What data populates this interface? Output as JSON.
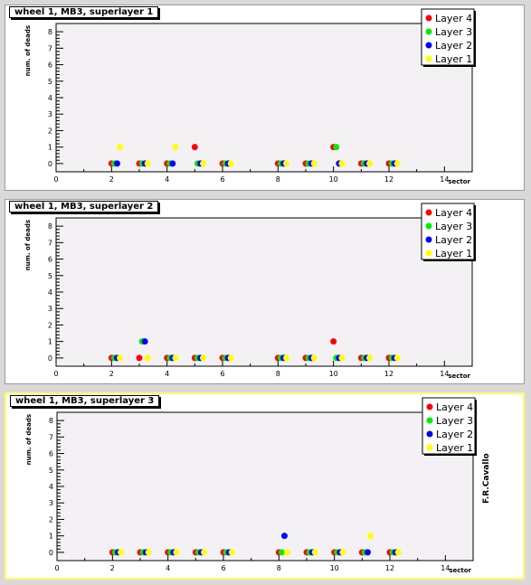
{
  "signature": "F.R.Cavallo",
  "colors": {
    "canvas": "#d9d9d9",
    "frame_fill": "#f4f1f4",
    "Layer 4": "#ff0000",
    "Layer 3": "#00ee00",
    "Layer 2": "#0000ff",
    "Layer 1": "#ffff00"
  },
  "chart_data": [
    {
      "type": "scatter",
      "title": "wheel 1, MB3, superlayer 1",
      "xlabel": "sector",
      "ylabel": "num. of deads",
      "xlim": [
        0,
        15
      ],
      "ylim": [
        -0.5,
        8.5
      ],
      "xticks": [
        "0",
        "2",
        "4",
        "6",
        "8",
        "10",
        "12",
        "14"
      ],
      "yticks": [
        "0",
        "1",
        "2",
        "3",
        "4",
        "5",
        "6",
        "7",
        "8"
      ],
      "legend": [
        "Layer 4",
        "Layer 3",
        "Layer 2",
        "Layer 1"
      ],
      "series": [
        {
          "name": "Layer 4",
          "x": [
            2,
            3,
            4,
            5,
            6,
            8,
            9,
            10,
            11,
            12
          ],
          "y": [
            0,
            0,
            0,
            1,
            0,
            0,
            0,
            1,
            0,
            0
          ]
        },
        {
          "name": "Layer 3",
          "x": [
            2.1,
            3.1,
            4.1,
            5.1,
            6.1,
            8.1,
            9.1,
            10.1,
            11.1,
            12.1
          ],
          "y": [
            0,
            0,
            0,
            0,
            0,
            0,
            0,
            1,
            0,
            0
          ]
        },
        {
          "name": "Layer 2",
          "x": [
            2.2,
            3.2,
            4.2,
            5.2,
            6.2,
            8.2,
            9.2,
            10.2,
            11.2,
            12.2
          ],
          "y": [
            0,
            0,
            0,
            0,
            0,
            0,
            0,
            0,
            0,
            0
          ]
        },
        {
          "name": "Layer 1",
          "x": [
            2.3,
            3.3,
            4.3,
            5.3,
            6.3,
            8.3,
            9.3,
            10.3,
            11.3,
            12.3
          ],
          "y": [
            1,
            0,
            1,
            0,
            0,
            0,
            0,
            0,
            0,
            0
          ]
        }
      ]
    },
    {
      "type": "scatter",
      "title": "wheel 1, MB3, superlayer 2",
      "xlabel": "sector",
      "ylabel": "num. of deads",
      "xlim": [
        0,
        15
      ],
      "ylim": [
        -0.5,
        8.5
      ],
      "xticks": [
        "0",
        "2",
        "4",
        "6",
        "8",
        "10",
        "12",
        "14"
      ],
      "yticks": [
        "0",
        "1",
        "2",
        "3",
        "4",
        "5",
        "6",
        "7",
        "8"
      ],
      "legend": [
        "Layer 4",
        "Layer 3",
        "Layer 2",
        "Layer 1"
      ],
      "series": [
        {
          "name": "Layer 4",
          "x": [
            2,
            3,
            4,
            5,
            6,
            8,
            9,
            10,
            11,
            12
          ],
          "y": [
            0,
            0,
            0,
            0,
            0,
            0,
            0,
            1,
            0,
            0
          ]
        },
        {
          "name": "Layer 3",
          "x": [
            2.1,
            3.1,
            4.1,
            5.1,
            6.1,
            8.1,
            9.1,
            10.1,
            11.1,
            12.1
          ],
          "y": [
            0,
            1,
            0,
            0,
            0,
            0,
            0,
            0,
            0,
            0
          ]
        },
        {
          "name": "Layer 2",
          "x": [
            2.2,
            3.2,
            4.2,
            5.2,
            6.2,
            8.2,
            9.2,
            10.2,
            11.2,
            12.2
          ],
          "y": [
            0,
            1,
            0,
            0,
            0,
            0,
            0,
            0,
            0,
            0
          ]
        },
        {
          "name": "Layer 1",
          "x": [
            2.3,
            3.3,
            4.3,
            5.3,
            6.3,
            8.3,
            9.3,
            10.3,
            11.3,
            12.3
          ],
          "y": [
            0,
            0,
            0,
            0,
            0,
            0,
            0,
            0,
            0,
            0
          ]
        }
      ]
    },
    {
      "type": "scatter",
      "title": "wheel 1, MB3, superlayer 3",
      "xlabel": "sector",
      "ylabel": "num. of deads",
      "xlim": [
        0,
        15
      ],
      "ylim": [
        -0.5,
        8.5
      ],
      "xticks": [
        "0",
        "2",
        "4",
        "6",
        "8",
        "10",
        "12",
        "14"
      ],
      "yticks": [
        "0",
        "1",
        "2",
        "3",
        "4",
        "5",
        "6",
        "7",
        "8"
      ],
      "legend": [
        "Layer 4",
        "Layer 3",
        "Layer 2",
        "Layer 1"
      ],
      "series": [
        {
          "name": "Layer 4",
          "x": [
            2,
            3,
            4,
            5,
            6,
            8,
            9,
            10,
            11,
            12
          ],
          "y": [
            0,
            0,
            0,
            0,
            0,
            0,
            0,
            0,
            0,
            0
          ]
        },
        {
          "name": "Layer 3",
          "x": [
            2.1,
            3.1,
            4.1,
            5.1,
            6.1,
            8.1,
            9.1,
            10.1,
            11.1,
            12.1
          ],
          "y": [
            0,
            0,
            0,
            0,
            0,
            0,
            0,
            0,
            0,
            0
          ]
        },
        {
          "name": "Layer 2",
          "x": [
            2.2,
            3.2,
            4.2,
            5.2,
            6.2,
            8.2,
            9.2,
            10.2,
            11.2,
            12.2
          ],
          "y": [
            0,
            0,
            0,
            0,
            0,
            1,
            0,
            0,
            0,
            0
          ]
        },
        {
          "name": "Layer 1",
          "x": [
            2.3,
            3.3,
            4.3,
            5.3,
            6.3,
            8.3,
            9.3,
            10.3,
            11.3,
            12.3
          ],
          "y": [
            0,
            0,
            0,
            0,
            0,
            0,
            0,
            0,
            1,
            0
          ]
        }
      ]
    }
  ]
}
